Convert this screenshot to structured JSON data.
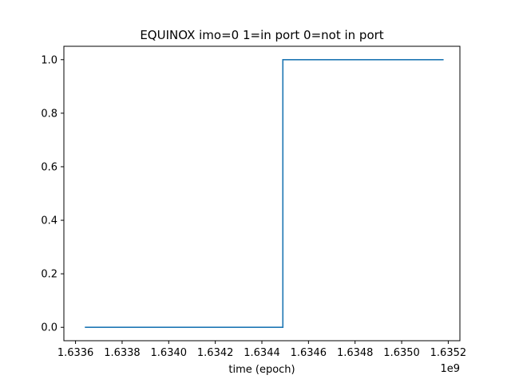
{
  "chart_data": {
    "type": "line",
    "title": "EQUINOX imo=0 1=in port 0=not in port",
    "xlabel": "time (epoch)",
    "ylabel": "",
    "x_offset_label": "1e9",
    "xlim": [
      1633550000.0,
      1635250000.0
    ],
    "ylim": [
      -0.05,
      1.05
    ],
    "xticks": [
      1633600000.0,
      1633800000.0,
      1634000000.0,
      1634200000.0,
      1634400000.0,
      1634600000.0,
      1634800000.0,
      1635000000.0,
      1635200000.0
    ],
    "xtick_labels": [
      "1.6336",
      "1.6338",
      "1.6340",
      "1.6342",
      "1.6344",
      "1.6346",
      "1.6348",
      "1.6350",
      "1.6352"
    ],
    "yticks": [
      0.0,
      0.2,
      0.4,
      0.6,
      0.8,
      1.0
    ],
    "ytick_labels": [
      "0.0",
      "0.2",
      "0.4",
      "0.6",
      "0.8",
      "1.0"
    ],
    "series": [
      {
        "x": [
          1633640000.0,
          1634490000.0,
          1634490000.0,
          1635180000.0
        ],
        "y": [
          0,
          0,
          1,
          1
        ]
      }
    ],
    "line_color": "#1f77b4",
    "grid": false,
    "legend": "none"
  }
}
